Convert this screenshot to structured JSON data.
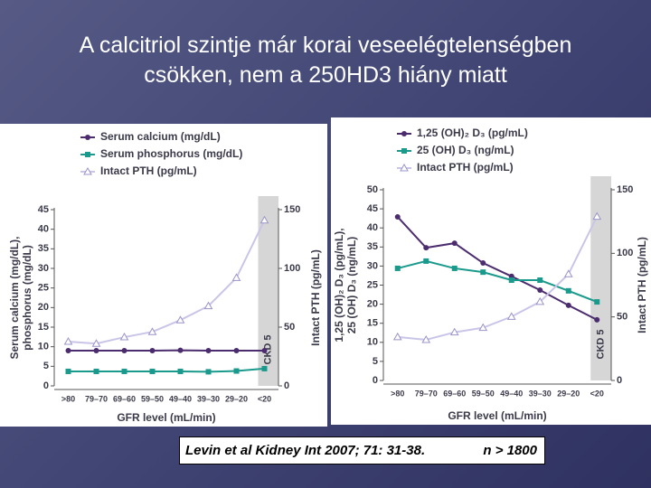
{
  "title": "A calcitriol szintje már korai veseelégtelenségben csökken, nem a 250HD3 hiány miatt",
  "citation": "Levin et al Kidney Int 2007; 71: 31-38.",
  "sample": "n > 1800",
  "chart_data": [
    {
      "type": "line",
      "categories": [
        ">80",
        "79–70",
        "69–60",
        "59–50",
        "49–40",
        "39–30",
        "29–20",
        "<20"
      ],
      "series": [
        {
          "name": "Serum calcium (mg/dL)",
          "color": "#4b2c6e",
          "marker": "circle",
          "values": [
            9.0,
            9.0,
            9.0,
            9.0,
            9.1,
            9.0,
            9.0,
            9.0
          ]
        },
        {
          "name": "Serum phosphorus (mg/dL)",
          "color": "#1a9a8c",
          "marker": "square",
          "values": [
            3.7,
            3.7,
            3.7,
            3.7,
            3.7,
            3.6,
            3.8,
            4.4
          ]
        },
        {
          "name": "Intact PTH (pg/mL)",
          "color": "#b8b3dd",
          "marker": "triangle",
          "axis": "y2",
          "values": [
            37.7,
            36,
            41.5,
            46,
            56,
            68,
            92,
            141
          ]
        }
      ],
      "ylim": [
        0,
        45
      ],
      "yticks": [
        0,
        5,
        10,
        15,
        20,
        25,
        30,
        35,
        40,
        45
      ],
      "y2lim": [
        0,
        150
      ],
      "y2ticks": [
        0,
        50,
        100,
        150
      ],
      "ylabel": [
        "Serum calcium (mg/dL),",
        "phosphorus (mg/dL)"
      ],
      "y2label": "Intact PTH (pg/mL)",
      "xlabel": "GFR level (mL/min)",
      "band_label": "CKD 5"
    },
    {
      "type": "line",
      "categories": [
        ">80",
        "79–70",
        "69–60",
        "59–50",
        "49–40",
        "39–30",
        "29–20",
        "<20"
      ],
      "series": [
        {
          "name": "1,25 (OH)₂ D₃ (pg/mL)",
          "color": "#4b2c6e",
          "marker": "circle",
          "values": [
            42.9,
            34.8,
            36.0,
            30.8,
            27.3,
            23.7,
            19.7,
            15.9
          ]
        },
        {
          "name": "25 (OH) D₃ (ng/mL)",
          "color": "#1a9a8c",
          "marker": "square",
          "values": [
            29.4,
            31.3,
            29.4,
            28.4,
            26.3,
            26.3,
            23.5,
            20.6
          ]
        },
        {
          "name": "Intact PTH (pg/mL)",
          "color": "#b8b3dd",
          "marker": "triangle",
          "axis": "y2",
          "values": [
            34.2,
            32,
            37.9,
            41.5,
            50.2,
            61.9,
            83.7,
            128.9
          ]
        }
      ],
      "ylim": [
        0,
        50
      ],
      "yticks": [
        0,
        5,
        10,
        15,
        20,
        25,
        30,
        35,
        40,
        45,
        50
      ],
      "y2lim": [
        0,
        150
      ],
      "y2ticks": [
        0,
        50,
        100,
        150
      ],
      "ylabel": [
        "1,25 (OH)₂ D₃ (pg/mL),",
        "25 (OH) D₃ (ng/mL)"
      ],
      "y2label": "Intact PTH (pg/mL)",
      "xlabel": "GFR level (mL/min)",
      "band_label": "CKD 5"
    }
  ]
}
